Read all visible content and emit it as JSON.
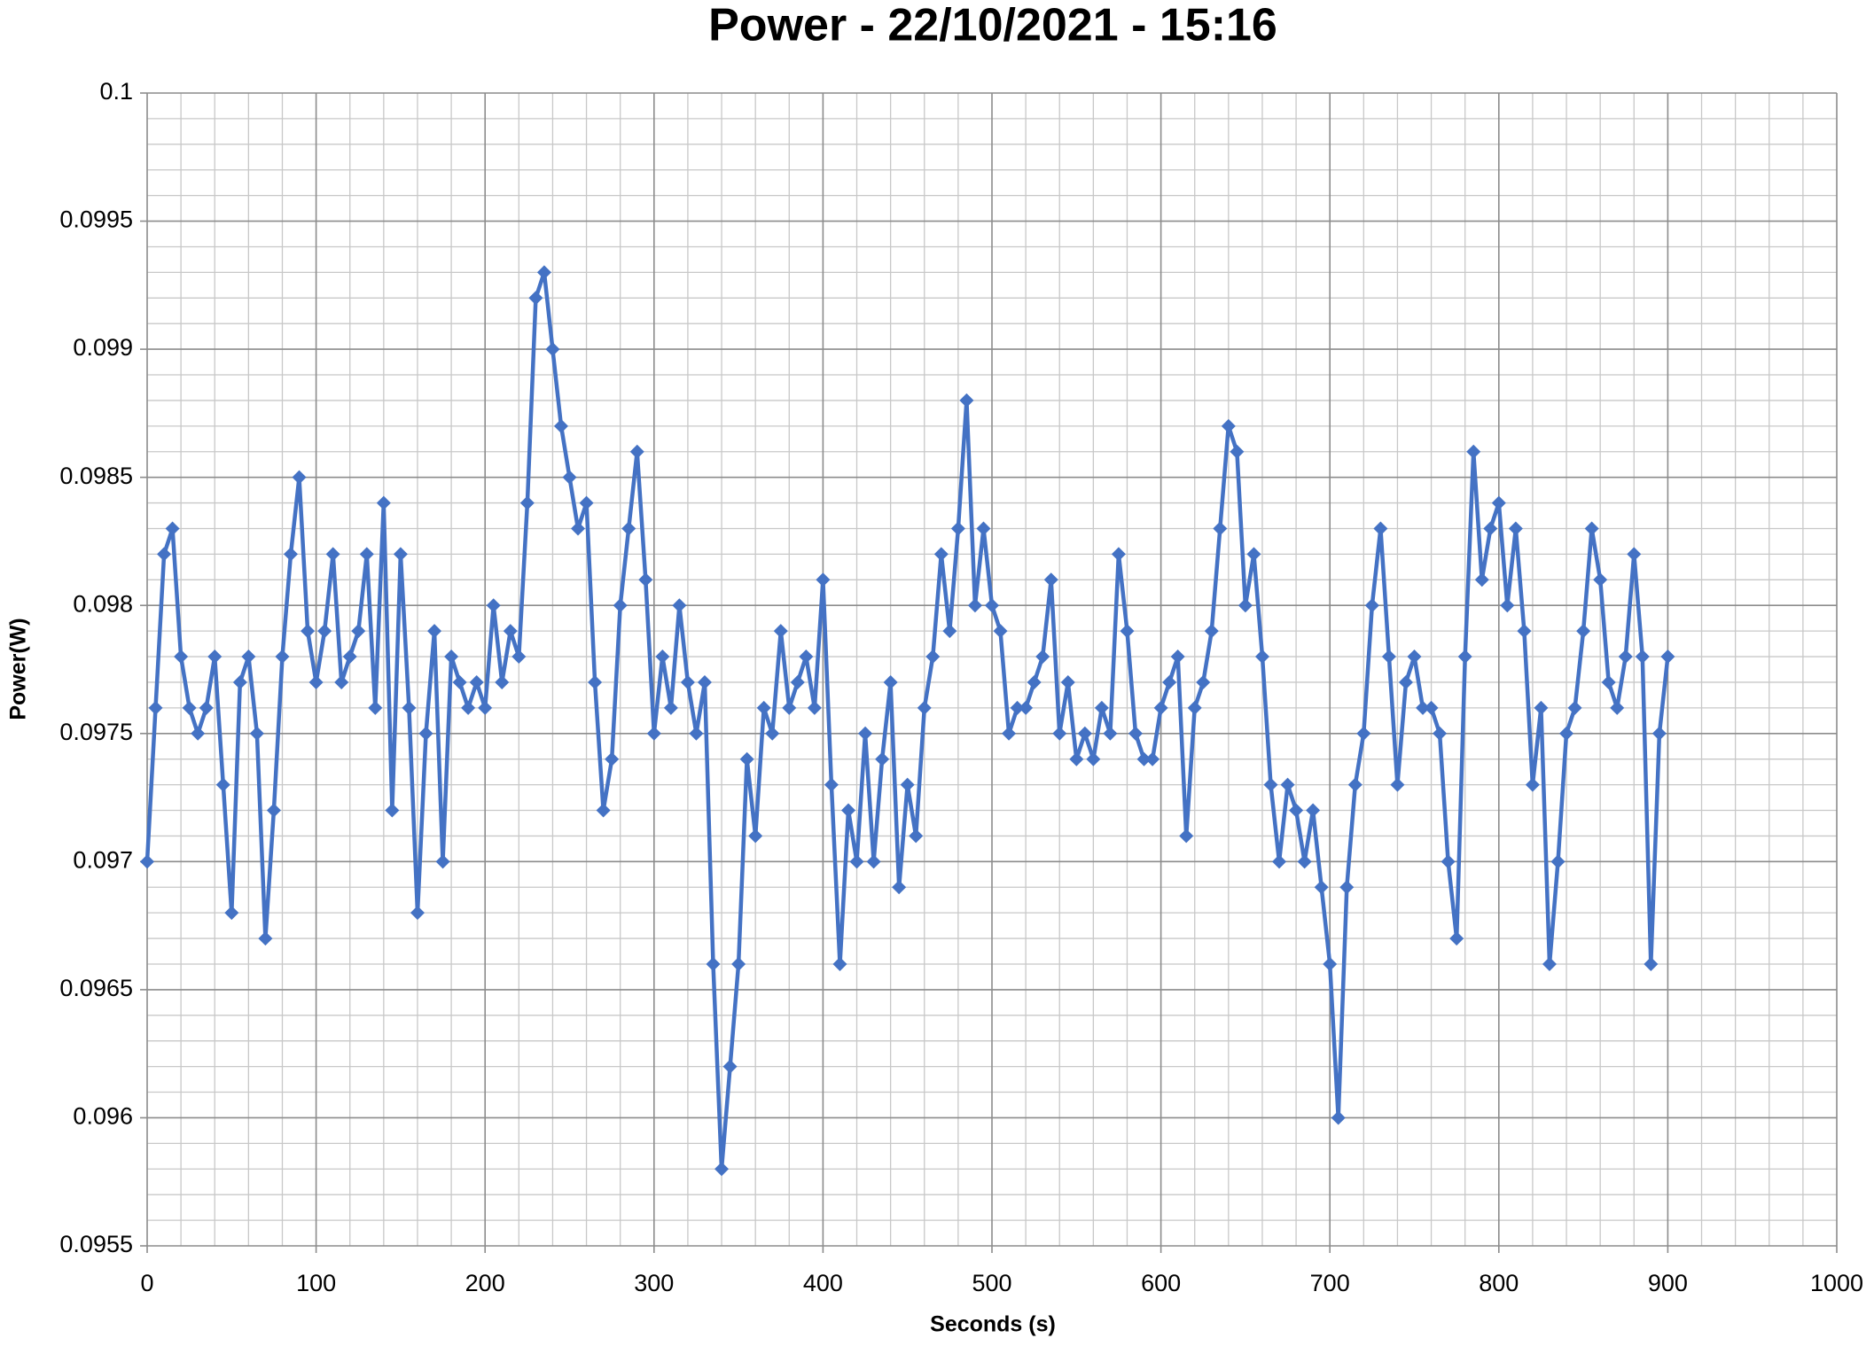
{
  "chart_data": {
    "type": "line",
    "title": "Power - 22/10/2021 - 15:16",
    "xlabel": "Seconds (s)",
    "ylabel": "Power(W)",
    "color": "#4472c4",
    "grid": true,
    "xlim": [
      0,
      1000
    ],
    "xticks": [
      0,
      100,
      200,
      300,
      400,
      500,
      600,
      700,
      800,
      900,
      1000
    ],
    "ylim": [
      0.0955,
      0.1
    ],
    "yticks": [
      0.0955,
      0.096,
      0.0965,
      0.097,
      0.0975,
      0.098,
      0.0985,
      0.099,
      0.0995,
      0.1
    ],
    "x": [
      0,
      5,
      10,
      15,
      20,
      25,
      30,
      35,
      40,
      45,
      50,
      55,
      60,
      65,
      70,
      75,
      80,
      85,
      90,
      95,
      100,
      105,
      110,
      115,
      120,
      125,
      130,
      135,
      140,
      145,
      150,
      155,
      160,
      165,
      170,
      175,
      180,
      185,
      190,
      195,
      200,
      205,
      210,
      215,
      220,
      225,
      230,
      235,
      240,
      245,
      250,
      255,
      260,
      265,
      270,
      275,
      280,
      285,
      290,
      295,
      300,
      305,
      310,
      315,
      320,
      325,
      330,
      335,
      340,
      345,
      350,
      355,
      360,
      365,
      370,
      375,
      380,
      385,
      390,
      395,
      400,
      405,
      410,
      415,
      420,
      425,
      430,
      435,
      440,
      445,
      450,
      455,
      460,
      465,
      470,
      475,
      480,
      485,
      490,
      495,
      500,
      505,
      510,
      515,
      520,
      525,
      530,
      535,
      540,
      545,
      550,
      555,
      560,
      565,
      570,
      575,
      580,
      585,
      590,
      595,
      600,
      605,
      610,
      615,
      620,
      625,
      630,
      635,
      640,
      645,
      650,
      655,
      660,
      665,
      670,
      675,
      680,
      685,
      690,
      695,
      700,
      705,
      710,
      715,
      720,
      725,
      730,
      735,
      740,
      745,
      750,
      755,
      760,
      765,
      770,
      775,
      780,
      785,
      790,
      795,
      800,
      805,
      810,
      815,
      820,
      825,
      830,
      835,
      840,
      845,
      850,
      855,
      860,
      865,
      870,
      875,
      880,
      885,
      890,
      895,
      900
    ],
    "values": [
      0.097,
      0.0976,
      0.0982,
      0.0983,
      0.0978,
      0.0976,
      0.0975,
      0.0976,
      0.0978,
      0.0973,
      0.0968,
      0.0977,
      0.0978,
      0.0975,
      0.0967,
      0.0972,
      0.0978,
      0.0982,
      0.0985,
      0.0979,
      0.0977,
      0.0979,
      0.0982,
      0.0977,
      0.0978,
      0.0979,
      0.0982,
      0.0976,
      0.0984,
      0.0972,
      0.0982,
      0.0976,
      0.0968,
      0.0975,
      0.0979,
      0.097,
      0.0978,
      0.0977,
      0.0976,
      0.0977,
      0.0976,
      0.098,
      0.0977,
      0.0979,
      0.0978,
      0.0984,
      0.0992,
      0.0993,
      0.099,
      0.0987,
      0.0985,
      0.0983,
      0.0984,
      0.0977,
      0.0972,
      0.0974,
      0.098,
      0.0983,
      0.0986,
      0.0981,
      0.0975,
      0.0978,
      0.0976,
      0.098,
      0.0977,
      0.0975,
      0.0977,
      0.0966,
      0.0958,
      0.0962,
      0.0966,
      0.0974,
      0.0971,
      0.0976,
      0.0975,
      0.0979,
      0.0976,
      0.0977,
      0.0978,
      0.0976,
      0.0981,
      0.0973,
      0.0966,
      0.0972,
      0.097,
      0.0975,
      0.097,
      0.0974,
      0.0977,
      0.0969,
      0.0973,
      0.0971,
      0.0976,
      0.0978,
      0.0982,
      0.0979,
      0.0983,
      0.0988,
      0.098,
      0.0983,
      0.098,
      0.0979,
      0.0975,
      0.0976,
      0.0976,
      0.0977,
      0.0978,
      0.0981,
      0.0975,
      0.0977,
      0.0974,
      0.0975,
      0.0974,
      0.0976,
      0.0975,
      0.0982,
      0.0979,
      0.0975,
      0.0974,
      0.0974,
      0.0976,
      0.0977,
      0.0978,
      0.0971,
      0.0976,
      0.0977,
      0.0979,
      0.0983,
      0.0987,
      0.0986,
      0.098,
      0.0982,
      0.0978,
      0.0973,
      0.097,
      0.0973,
      0.0972,
      0.097,
      0.0972,
      0.0969,
      0.0966,
      0.096,
      0.0969,
      0.0973,
      0.0975,
      0.098,
      0.0983,
      0.0978,
      0.0973,
      0.0977,
      0.0978,
      0.0976,
      0.0976,
      0.0975,
      0.097,
      0.0967,
      0.0978,
      0.0986,
      0.0981,
      0.0983,
      0.0984,
      0.098,
      0.0983,
      0.0979,
      0.0973,
      0.0976,
      0.0966,
      0.097,
      0.0975,
      0.0976,
      0.0979,
      0.0983,
      0.0981,
      0.0977,
      0.0976,
      0.0978,
      0.0982,
      0.0978,
      0.0966,
      0.0975,
      0.0978
    ]
  }
}
